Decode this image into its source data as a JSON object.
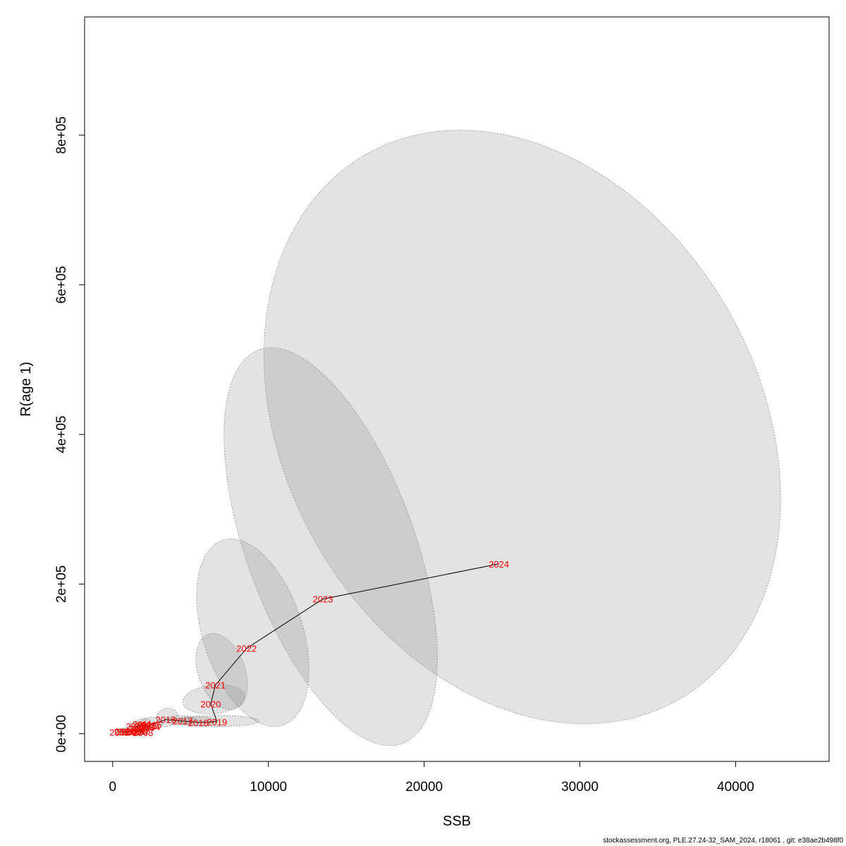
{
  "footer_text": "stockassessment.org, PLE.27.24-32_SAM_2024, r18061 , git: e38ae2b498f0",
  "colors": {
    "ellipse_fill": "#808080",
    "ellipse_opacity": 0.22,
    "ellipse_stroke": "#8c8c8c",
    "label": "#ff0000",
    "line": "#000000"
  },
  "chart_data": {
    "type": "scatter",
    "xlabel": "SSB",
    "ylabel": "R(age 1)",
    "xlim": [
      -1800,
      46000
    ],
    "ylim": [
      -37000,
      958000
    ],
    "x_ticks": [
      0,
      10000,
      20000,
      30000,
      40000
    ],
    "x_tick_labels": [
      "0",
      "10000",
      "20000",
      "30000",
      "40000"
    ],
    "y_ticks": [
      0,
      200000,
      400000,
      600000,
      800000
    ],
    "y_tick_labels": [
      "0e+00",
      "2e+05",
      "4e+05",
      "6e+05",
      "8e+05"
    ],
    "grid": false,
    "points": [
      {
        "year": "2002",
        "ssb": 450,
        "r": 2000
      },
      {
        "year": "2003",
        "ssb": 750,
        "r": 3000
      },
      {
        "year": "2004",
        "ssb": 900,
        "r": 2500
      },
      {
        "year": "2005",
        "ssb": 1200,
        "r": 2500
      },
      {
        "year": "2006",
        "ssb": 1500,
        "r": 3500
      },
      {
        "year": "2007",
        "ssb": 1700,
        "r": 3000
      },
      {
        "year": "2008",
        "ssb": 1950,
        "r": 1500
      },
      {
        "year": "2009",
        "ssb": 1700,
        "r": 7000
      },
      {
        "year": "2010",
        "ssb": 1500,
        "r": 10000
      },
      {
        "year": "2011",
        "ssb": 1900,
        "r": 13000
      },
      {
        "year": "2012",
        "ssb": 2050,
        "r": 10000
      },
      {
        "year": "2013",
        "ssb": 2200,
        "r": 11000
      },
      {
        "year": "2014",
        "ssb": 2400,
        "r": 9000
      },
      {
        "year": "2015",
        "ssb": 2500,
        "r": 12000
      },
      {
        "year": "2016",
        "ssb": 3400,
        "r": 19000
      },
      {
        "year": "2017",
        "ssb": 4500,
        "r": 17000
      },
      {
        "year": "2018",
        "ssb": 5500,
        "r": 15000
      },
      {
        "year": "2019",
        "ssb": 6700,
        "r": 16000
      },
      {
        "year": "2020",
        "ssb": 6300,
        "r": 40000
      },
      {
        "year": "2021",
        "ssb": 6600,
        "r": 65000
      },
      {
        "year": "2022",
        "ssb": 8600,
        "r": 114000
      },
      {
        "year": "2023",
        "ssb": 13500,
        "r": 180000
      },
      {
        "year": "2024",
        "ssb": 24800,
        "r": 227000
      }
    ],
    "confidence_regions": [
      {
        "year": "2024",
        "cx": 26300,
        "cy": 410000,
        "rx": 15200,
        "ry": 420000,
        "rotation_deg": -30
      },
      {
        "year": "2023",
        "cx": 14000,
        "cy": 250000,
        "rx": 5400,
        "ry": 280000,
        "rotation_deg": -20
      },
      {
        "year": "2022",
        "cx": 9000,
        "cy": 135000,
        "rx": 3200,
        "ry": 130000,
        "rotation_deg": -18
      },
      {
        "year": "2021",
        "cx": 7000,
        "cy": 83000,
        "rx": 1500,
        "ry": 53000,
        "rotation_deg": -20
      },
      {
        "year": "2020",
        "cx": 6500,
        "cy": 46000,
        "rx": 2000,
        "ry": 19000,
        "rotation_deg": -6
      },
      {
        "year": "2019",
        "cx": 6800,
        "cy": 17000,
        "rx": 2600,
        "ry": 7500,
        "rotation_deg": 0
      },
      {
        "year": "2018",
        "cx": 5300,
        "cy": 17000,
        "rx": 1300,
        "ry": 6000,
        "rotation_deg": 0
      },
      {
        "year": "2017",
        "cx": 4400,
        "cy": 18000,
        "rx": 1000,
        "ry": 6000,
        "rotation_deg": 0
      },
      {
        "year": "2016",
        "cx": 3500,
        "cy": 22000,
        "rx": 700,
        "ry": 12000,
        "rotation_deg": -15
      },
      {
        "year": "2015",
        "cx": 2500,
        "cy": 14000,
        "rx": 700,
        "ry": 8000,
        "rotation_deg": 0
      },
      {
        "year": "2012",
        "cx": 2000,
        "cy": 12000,
        "rx": 600,
        "ry": 8000,
        "rotation_deg": 0
      },
      {
        "year": "2009",
        "cx": 1600,
        "cy": 9000,
        "rx": 500,
        "ry": 7000,
        "rotation_deg": 0
      },
      {
        "year": "2005",
        "cx": 1200,
        "cy": 5000,
        "rx": 500,
        "ry": 5000,
        "rotation_deg": 0
      },
      {
        "year": "2002",
        "cx": 600,
        "cy": 3500,
        "rx": 400,
        "ry": 4000,
        "rotation_deg": 0
      }
    ]
  }
}
